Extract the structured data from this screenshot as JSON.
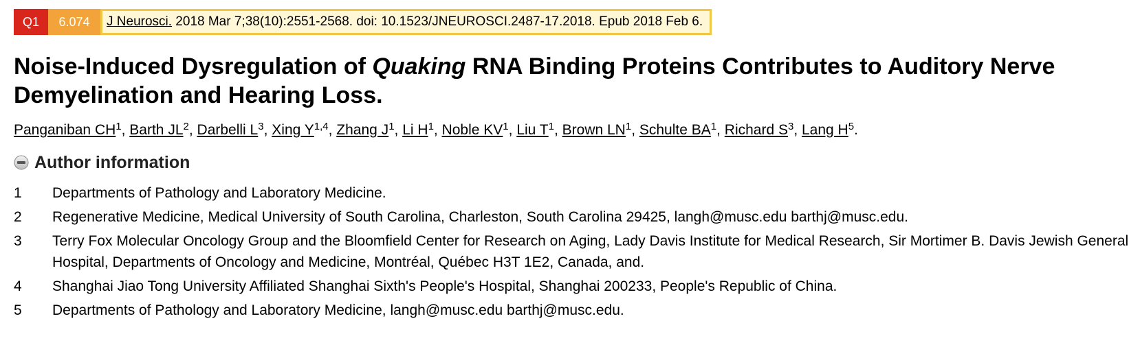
{
  "citation": {
    "quartile": "Q1",
    "impact_factor": "6.074",
    "journal": "J Neurosci.",
    "details": " 2018 Mar 7;38(10):2551-2568. doi: 10.1523/JNEUROSCI.2487-17.2018. Epub 2018 Feb 6."
  },
  "title": {
    "part1": "Noise-Induced Dysregulation of ",
    "italic": "Quaking",
    "part2": " RNA Binding Proteins Contributes to Auditory Nerve Demyelination and Hearing Loss."
  },
  "authors": [
    {
      "name": "Panganiban CH",
      "aff": "1"
    },
    {
      "name": "Barth JL",
      "aff": "2"
    },
    {
      "name": "Darbelli L",
      "aff": "3"
    },
    {
      "name": "Xing Y",
      "aff": "1,4"
    },
    {
      "name": "Zhang J",
      "aff": "1"
    },
    {
      "name": "Li H",
      "aff": "1"
    },
    {
      "name": "Noble KV",
      "aff": "1"
    },
    {
      "name": "Liu T",
      "aff": "1"
    },
    {
      "name": "Brown LN",
      "aff": "1"
    },
    {
      "name": "Schulte BA",
      "aff": "1"
    },
    {
      "name": "Richard S",
      "aff": "3"
    },
    {
      "name": "Lang H",
      "aff": "5"
    }
  ],
  "author_info": {
    "label": "Author information",
    "icon": "collapse-minus-icon"
  },
  "affiliations": [
    {
      "num": "1",
      "text": "Departments of Pathology and Laboratory Medicine."
    },
    {
      "num": "2",
      "text": "Regenerative Medicine, Medical University of South Carolina, Charleston, South Carolina 29425, langh@musc.edu barthj@musc.edu."
    },
    {
      "num": "3",
      "text": "Terry Fox Molecular Oncology Group and the Bloomfield Center for Research on Aging, Lady Davis Institute for Medical Research, Sir Mortimer B. Davis Jewish General Hospital, Departments of Oncology and Medicine, Montréal, Québec H3T 1E2, Canada, and."
    },
    {
      "num": "4",
      "text": "Shanghai Jiao Tong University Affiliated Shanghai Sixth's People's Hospital, Shanghai 200233, People's Republic of China."
    },
    {
      "num": "5",
      "text": "Departments of Pathology and Laboratory Medicine, langh@musc.edu barthj@musc.edu."
    }
  ],
  "colors": {
    "quartile_badge": "#d9261c",
    "impact_badge": "#f2a33a",
    "citation_border": "#f2c744",
    "citation_background": "#fff7d6"
  }
}
